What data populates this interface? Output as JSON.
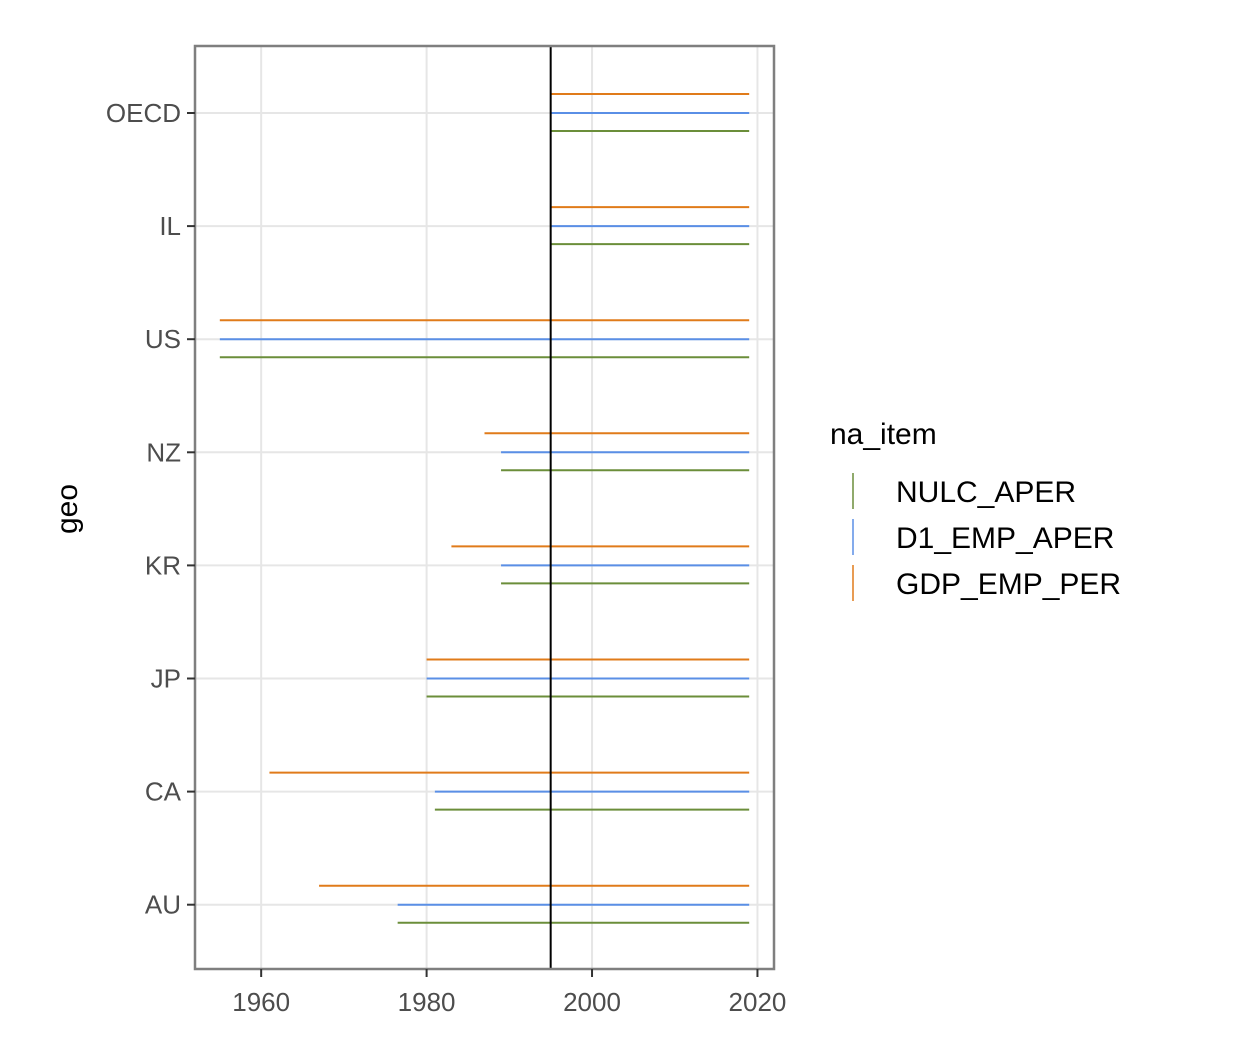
{
  "chart_data": {
    "type": "range",
    "ylabel": "geo",
    "xlabel": "",
    "xlim": [
      1952,
      2022
    ],
    "x_ticks": [
      1960,
      1980,
      2000,
      2020
    ],
    "reference_line_x": 1995,
    "categories": [
      "OECD",
      "IL",
      "US",
      "NZ",
      "KR",
      "JP",
      "CA",
      "AU"
    ],
    "legend": {
      "title": "na_item",
      "position": "right",
      "entries": [
        {
          "key": "NULC_APER",
          "label": "NULC_APER",
          "color": "#6b8e3a"
        },
        {
          "key": "D1_EMP_APER",
          "label": "D1_EMP_APER",
          "color": "#5a8fe6"
        },
        {
          "key": "GDP_EMP_PER",
          "label": "GDP_EMP_PER",
          "color": "#e07b1a"
        }
      ]
    },
    "series": [
      {
        "key": "GDP_EMP_PER",
        "color": "#e07b1a",
        "ranges": {
          "OECD": [
            1995,
            2019
          ],
          "IL": [
            1995,
            2019
          ],
          "US": [
            1955,
            2019
          ],
          "NZ": [
            1987,
            2019
          ],
          "KR": [
            1983,
            2019
          ],
          "JP": [
            1980,
            2019
          ],
          "CA": [
            1961,
            2019
          ],
          "AU": [
            1967,
            2019
          ]
        }
      },
      {
        "key": "D1_EMP_APER",
        "color": "#5a8fe6",
        "ranges": {
          "OECD": [
            1995,
            2019
          ],
          "IL": [
            1995,
            2019
          ],
          "US": [
            1955,
            2019
          ],
          "NZ": [
            1989,
            2019
          ],
          "KR": [
            1989,
            2019
          ],
          "JP": [
            1980,
            2019
          ],
          "CA": [
            1981,
            2019
          ],
          "AU": [
            1976.5,
            2019
          ]
        }
      },
      {
        "key": "NULC_APER",
        "color": "#6b8e3a",
        "ranges": {
          "OECD": [
            1995,
            2019
          ],
          "IL": [
            1995,
            2019
          ],
          "US": [
            1955,
            2019
          ],
          "NZ": [
            1989,
            2019
          ],
          "KR": [
            1989,
            2019
          ],
          "JP": [
            1980,
            2019
          ],
          "CA": [
            1981,
            2019
          ],
          "AU": [
            1976.5,
            2019
          ]
        }
      }
    ],
    "grid": true
  }
}
